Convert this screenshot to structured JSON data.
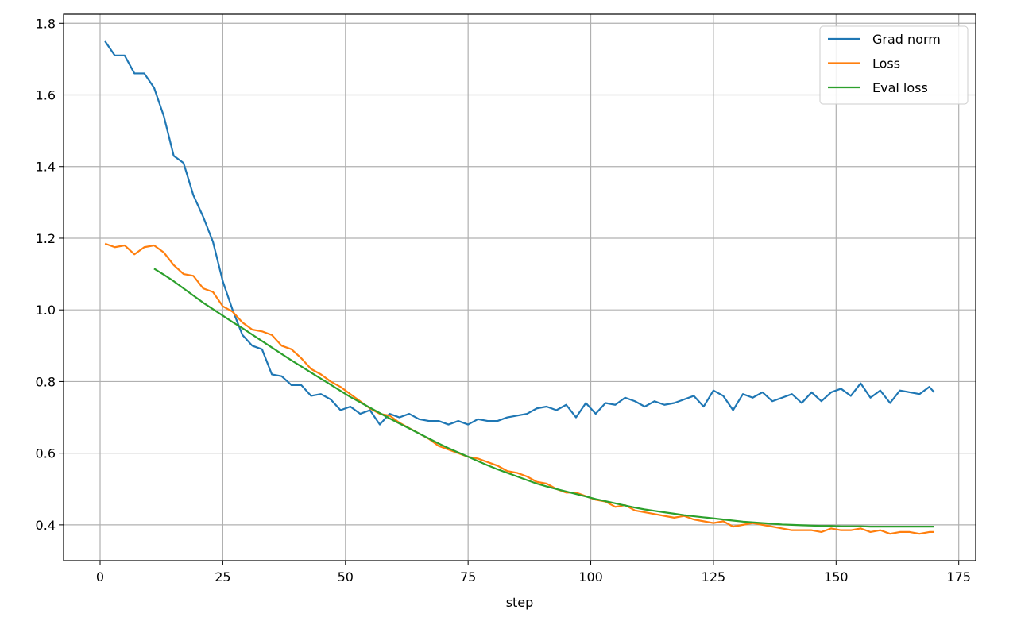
{
  "chart_data": {
    "type": "line",
    "xlabel": "step",
    "x": [
      1,
      3,
      5,
      7,
      9,
      11,
      13,
      15,
      17,
      19,
      21,
      23,
      25,
      27,
      29,
      31,
      33,
      35,
      37,
      39,
      41,
      43,
      45,
      47,
      49,
      51,
      53,
      55,
      57,
      59,
      61,
      63,
      65,
      67,
      69,
      71,
      73,
      75,
      77,
      79,
      81,
      83,
      85,
      87,
      89,
      91,
      93,
      95,
      97,
      99,
      101,
      103,
      105,
      107,
      109,
      111,
      113,
      115,
      117,
      119,
      121,
      123,
      125,
      127,
      129,
      131,
      133,
      135,
      137,
      139,
      141,
      143,
      145,
      147,
      149,
      151,
      153,
      155,
      157,
      159,
      161,
      163,
      165,
      167,
      169,
      170
    ],
    "series": [
      {
        "name": "Grad norm",
        "color": "#1f77b4",
        "values": [
          1.75,
          1.71,
          1.71,
          1.66,
          1.66,
          1.62,
          1.54,
          1.43,
          1.41,
          1.32,
          1.26,
          1.19,
          1.08,
          1.0,
          0.93,
          0.9,
          0.89,
          0.82,
          0.815,
          0.79,
          0.79,
          0.76,
          0.765,
          0.75,
          0.72,
          0.73,
          0.71,
          0.72,
          0.68,
          0.71,
          0.7,
          0.71,
          0.695,
          0.69,
          0.69,
          0.68,
          0.69,
          0.68,
          0.695,
          0.69,
          0.69,
          0.7,
          0.705,
          0.71,
          0.725,
          0.73,
          0.72,
          0.735,
          0.7,
          0.74,
          0.71,
          0.74,
          0.735,
          0.755,
          0.745,
          0.73,
          0.745,
          0.735,
          0.74,
          0.75,
          0.76,
          0.73,
          0.775,
          0.76,
          0.72,
          0.765,
          0.755,
          0.77,
          0.745,
          0.755,
          0.765,
          0.74,
          0.77,
          0.745,
          0.77,
          0.78,
          0.76,
          0.795,
          0.755,
          0.775,
          0.74,
          0.775,
          0.77,
          0.765,
          0.785,
          0.77
        ]
      },
      {
        "name": "Loss",
        "color": "#ff7f0e",
        "values": [
          1.185,
          1.175,
          1.18,
          1.155,
          1.175,
          1.18,
          1.16,
          1.125,
          1.1,
          1.095,
          1.06,
          1.05,
          1.01,
          0.995,
          0.965,
          0.945,
          0.94,
          0.93,
          0.9,
          0.89,
          0.865,
          0.835,
          0.82,
          0.8,
          0.785,
          0.765,
          0.745,
          0.725,
          0.71,
          0.705,
          0.685,
          0.67,
          0.655,
          0.64,
          0.62,
          0.61,
          0.6,
          0.59,
          0.585,
          0.575,
          0.565,
          0.55,
          0.545,
          0.535,
          0.52,
          0.515,
          0.5,
          0.49,
          0.49,
          0.48,
          0.47,
          0.465,
          0.45,
          0.455,
          0.44,
          0.435,
          0.43,
          0.425,
          0.42,
          0.425,
          0.415,
          0.41,
          0.405,
          0.41,
          0.395,
          0.4,
          0.405,
          0.4,
          0.395,
          0.39,
          0.385,
          0.385,
          0.385,
          0.38,
          0.39,
          0.385,
          0.385,
          0.39,
          0.38,
          0.385,
          0.375,
          0.38,
          0.38,
          0.375,
          0.38,
          0.38
        ]
      },
      {
        "name": "Eval loss",
        "color": "#2ca02c",
        "values": [
          null,
          null,
          null,
          null,
          null,
          1.115,
          1.098,
          1.08,
          1.06,
          1.04,
          1.02,
          1.002,
          0.984,
          0.966,
          0.949,
          0.931,
          0.913,
          0.895,
          0.877,
          0.859,
          0.842,
          0.825,
          0.808,
          0.791,
          0.774,
          0.757,
          0.742,
          0.727,
          0.712,
          0.697,
          0.683,
          0.669,
          0.655,
          0.641,
          0.627,
          0.614,
          0.602,
          0.59,
          0.578,
          0.566,
          0.555,
          0.545,
          0.535,
          0.525,
          0.515,
          0.507,
          0.5,
          0.493,
          0.486,
          0.479,
          0.472,
          0.466,
          0.46,
          0.454,
          0.448,
          0.443,
          0.439,
          0.435,
          0.431,
          0.427,
          0.424,
          0.421,
          0.418,
          0.415,
          0.412,
          0.409,
          0.407,
          0.405,
          0.403,
          0.401,
          0.4,
          0.399,
          0.398,
          0.397,
          0.397,
          0.396,
          0.396,
          0.396,
          0.395,
          0.395,
          0.395,
          0.395,
          0.395,
          0.395,
          0.395,
          0.395
        ]
      }
    ],
    "xlim": [
      -7.45,
      178.45
    ],
    "xticks": [
      0,
      25,
      50,
      75,
      100,
      125,
      150,
      175
    ],
    "ylim": [
      0.3,
      1.825
    ],
    "yticks": [
      0.4,
      0.6,
      0.8,
      {
        "value": 1,
        "label": "1.0"
      },
      1.2,
      1.4,
      1.6,
      1.8
    ],
    "grid": true,
    "legend": "upper right"
  }
}
